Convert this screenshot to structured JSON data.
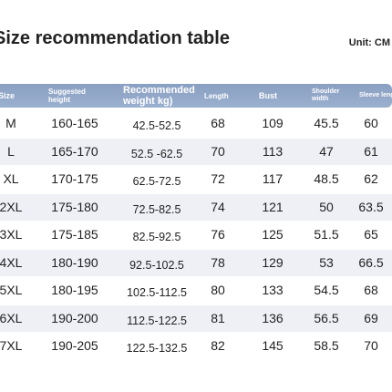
{
  "header": {
    "title": "Size recommendation table",
    "unit": "Unit: CM"
  },
  "table": {
    "columns": [
      "Size",
      "Suggested height",
      "Recommended weight kg)",
      "Length",
      "Bust",
      "Shoulder width",
      "Sleeve length"
    ],
    "rows": [
      [
        "M",
        "160-165",
        "42.5-52.5",
        68,
        109,
        45.5,
        60
      ],
      [
        "L",
        "165-170",
        "52.5 -62.5",
        70,
        113,
        47,
        61
      ],
      [
        "XL",
        "170-175",
        "62.5-72.5",
        72,
        117,
        48.5,
        62
      ],
      [
        "2XL",
        "175-180",
        "72.5-82.5",
        74,
        121,
        50,
        63.5
      ],
      [
        "3XL",
        "175-185",
        "82.5-92.5",
        76,
        125,
        51.5,
        65
      ],
      [
        "4XL",
        "180-190",
        "92.5-102.5",
        78,
        129,
        53,
        66.5
      ],
      [
        "5XL",
        "180-195",
        "102.5-112.5",
        80,
        133,
        54.5,
        68
      ],
      [
        "6XL",
        "190-200",
        "112.5-122.5",
        81,
        136,
        56.5,
        69
      ],
      [
        "7XL",
        "190-205",
        "122.5-132.5",
        82,
        145,
        58.5,
        70
      ]
    ]
  }
}
